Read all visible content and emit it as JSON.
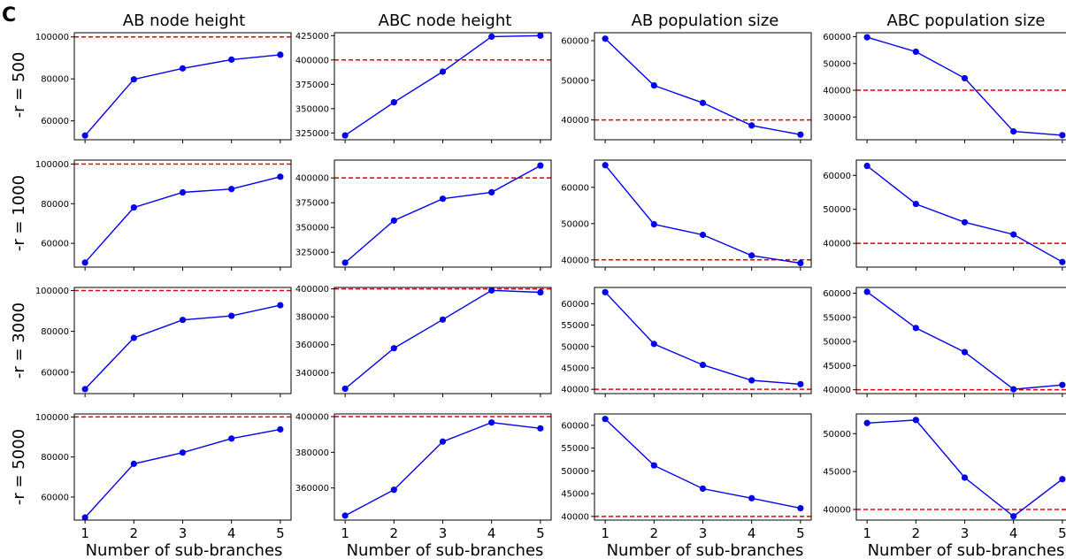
{
  "figure": {
    "panel_letter": "C",
    "column_titles": [
      "AB node height",
      "ABC node height",
      "AB population size",
      "ABC population size"
    ],
    "row_labels": [
      "-r = 500",
      "-r = 1000",
      "-r = 3000",
      "-r = 5000"
    ],
    "xlabel": "Number of sub-branches"
  },
  "colors": {
    "line": "#0000ee",
    "marker": "#0000ee",
    "reference": "#dd0000"
  },
  "chart_data": [
    {
      "type": "line",
      "row": 0,
      "col": 0,
      "x": [
        1,
        2,
        3,
        4,
        5
      ],
      "values": [
        53000,
        79800,
        85000,
        89200,
        91500
      ],
      "reference": 100000,
      "ylim": [
        51000,
        102000
      ],
      "yticks": [
        60000,
        80000,
        100000
      ],
      "xlabel": "",
      "ylabel": ""
    },
    {
      "type": "line",
      "row": 0,
      "col": 1,
      "x": [
        1,
        2,
        3,
        4,
        5
      ],
      "values": [
        322500,
        356500,
        388000,
        424000,
        425000
      ],
      "reference": 400000,
      "ylim": [
        318000,
        428000
      ],
      "yticks": [
        325000,
        350000,
        375000,
        400000,
        425000
      ],
      "xlabel": "",
      "ylabel": ""
    },
    {
      "type": "line",
      "row": 0,
      "col": 2,
      "x": [
        1,
        2,
        3,
        4,
        5
      ],
      "values": [
        60500,
        48700,
        44300,
        38600,
        36300
      ],
      "reference": 40000,
      "ylim": [
        35000,
        62000
      ],
      "yticks": [
        40000,
        50000,
        60000
      ],
      "xlabel": "",
      "ylabel": ""
    },
    {
      "type": "line",
      "row": 0,
      "col": 3,
      "x": [
        1,
        2,
        3,
        4,
        5
      ],
      "values": [
        59800,
        54400,
        44500,
        24600,
        23200
      ],
      "reference": 40000,
      "ylim": [
        21500,
        61500
      ],
      "yticks": [
        30000,
        40000,
        50000,
        60000
      ],
      "xlabel": "",
      "ylabel": ""
    },
    {
      "type": "line",
      "row": 1,
      "col": 0,
      "x": [
        1,
        2,
        3,
        4,
        5
      ],
      "values": [
        50300,
        78100,
        85700,
        87400,
        93600
      ],
      "reference": 100000,
      "ylim": [
        48000,
        102000
      ],
      "yticks": [
        60000,
        80000,
        100000
      ],
      "xlabel": "",
      "ylabel": ""
    },
    {
      "type": "line",
      "row": 1,
      "col": 1,
      "x": [
        1,
        2,
        3,
        4,
        5
      ],
      "values": [
        314500,
        357000,
        379000,
        385500,
        412500
      ],
      "reference": 400000,
      "ylim": [
        310000,
        418000
      ],
      "yticks": [
        325000,
        350000,
        375000,
        400000
      ],
      "xlabel": "",
      "ylabel": ""
    },
    {
      "type": "line",
      "row": 1,
      "col": 2,
      "x": [
        1,
        2,
        3,
        4,
        5
      ],
      "values": [
        66100,
        49800,
        46900,
        41200,
        39100
      ],
      "reference": 40000,
      "ylim": [
        38000,
        67500
      ],
      "yticks": [
        40000,
        50000,
        60000
      ],
      "xlabel": "",
      "ylabel": ""
    },
    {
      "type": "line",
      "row": 1,
      "col": 3,
      "x": [
        1,
        2,
        3,
        4,
        5
      ],
      "values": [
        62800,
        51600,
        46200,
        42600,
        34500
      ],
      "reference": 40000,
      "ylim": [
        33000,
        64500
      ],
      "yticks": [
        40000,
        50000,
        60000
      ],
      "xlabel": "",
      "ylabel": ""
    },
    {
      "type": "line",
      "row": 2,
      "col": 0,
      "x": [
        1,
        2,
        3,
        4,
        5
      ],
      "values": [
        51700,
        76800,
        85600,
        87600,
        92800
      ],
      "reference": 100000,
      "ylim": [
        49500,
        101500
      ],
      "yticks": [
        60000,
        80000,
        100000
      ],
      "xlabel": "",
      "ylabel": ""
    },
    {
      "type": "line",
      "row": 2,
      "col": 1,
      "x": [
        1,
        2,
        3,
        4,
        5
      ],
      "values": [
        328500,
        357500,
        378000,
        398900,
        397500
      ],
      "reference": 400000,
      "ylim": [
        325000,
        401000
      ],
      "yticks": [
        340000,
        360000,
        380000,
        400000
      ],
      "xlabel": "",
      "ylabel": ""
    },
    {
      "type": "line",
      "row": 2,
      "col": 2,
      "x": [
        1,
        2,
        3,
        4,
        5
      ],
      "values": [
        62700,
        50600,
        45700,
        42100,
        41200
      ],
      "reference": 40000,
      "ylim": [
        39000,
        63800
      ],
      "yticks": [
        40000,
        45000,
        50000,
        55000,
        60000
      ],
      "xlabel": "",
      "ylabel": ""
    },
    {
      "type": "line",
      "row": 2,
      "col": 3,
      "x": [
        1,
        2,
        3,
        4,
        5
      ],
      "values": [
        60300,
        52800,
        47800,
        40100,
        41000
      ],
      "reference": 40000,
      "ylim": [
        39200,
        61200
      ],
      "yticks": [
        40000,
        45000,
        50000,
        55000,
        60000
      ],
      "xlabel": "",
      "ylabel": ""
    },
    {
      "type": "line",
      "row": 3,
      "col": 0,
      "x": [
        1,
        2,
        3,
        4,
        5
      ],
      "values": [
        49800,
        76600,
        82200,
        89200,
        93800
      ],
      "reference": 100000,
      "ylim": [
        48500,
        101500
      ],
      "yticks": [
        60000,
        80000,
        100000
      ],
      "xlabel": "Number of sub-branches",
      "ylabel": ""
    },
    {
      "type": "line",
      "row": 3,
      "col": 1,
      "x": [
        1,
        2,
        3,
        4,
        5
      ],
      "values": [
        344500,
        359000,
        386000,
        396700,
        393400
      ],
      "reference": 400000,
      "ylim": [
        342000,
        401500
      ],
      "yticks": [
        360000,
        380000,
        400000
      ],
      "xlabel": "Number of sub-branches",
      "ylabel": ""
    },
    {
      "type": "line",
      "row": 3,
      "col": 2,
      "x": [
        1,
        2,
        3,
        4,
        5
      ],
      "values": [
        61400,
        51200,
        46100,
        44000,
        41800
      ],
      "reference": 40000,
      "ylim": [
        39200,
        62500
      ],
      "yticks": [
        40000,
        45000,
        50000,
        55000,
        60000
      ],
      "xlabel": "Number of sub-branches",
      "ylabel": ""
    },
    {
      "type": "line",
      "row": 3,
      "col": 3,
      "x": [
        1,
        2,
        3,
        4,
        5
      ],
      "values": [
        51400,
        51800,
        44200,
        39100,
        44000
      ],
      "reference": 40000,
      "ylim": [
        38600,
        52600
      ],
      "yticks": [
        40000,
        45000,
        50000
      ],
      "xlabel": "Number of sub-branches",
      "ylabel": ""
    }
  ]
}
